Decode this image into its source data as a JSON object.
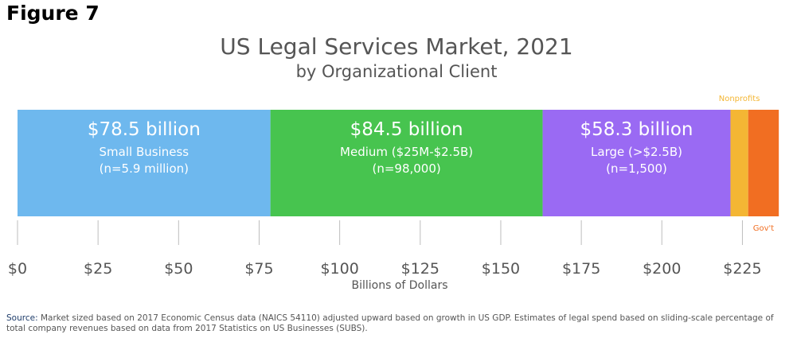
{
  "figure_label": "Figure 7",
  "source": {
    "label": "Source:",
    "text": "Market sized based on 2017 Economic Census data (NAICS 54110) adjusted upward based on growth in US GDP. Estimates of legal spend based on sliding-scale percentage of total company  revenues based on data from 2017 Statistics on US Businesses (SUBS)."
  },
  "chart_data": {
    "type": "bar",
    "stacked": true,
    "orientation": "horizontal",
    "title": "US Legal Services Market, 2021",
    "subtitle": "by Organizational Client",
    "xlabel": "Billions of Dollars",
    "xlim": [
      0,
      237
    ],
    "x_ticks": [
      0,
      25,
      50,
      75,
      100,
      125,
      150,
      175,
      200,
      225
    ],
    "x_tick_labels": [
      "$0",
      "$25",
      "$50",
      "$75",
      "$100",
      "$125",
      "$150",
      "$175",
      "$200",
      "$225"
    ],
    "grid": false,
    "series": [
      {
        "name": "Small Business",
        "value": 78.5,
        "color": "#6eb8ee",
        "labels": [
          "$78.5 billion",
          "Small Business",
          "(n=5.9 million)"
        ]
      },
      {
        "name": "Medium ($25M-$2.5B)",
        "value": 84.5,
        "color": "#47c44f",
        "labels": [
          "$84.5 billion",
          "Medium ($25M-$2.5B)",
          "(n=98,000)"
        ]
      },
      {
        "name": "Large (>$2.5B)",
        "value": 58.3,
        "color": "#9a6af3",
        "labels": [
          "$58.3 billion",
          "Large (>$2.5B)",
          "(n=1,500)"
        ]
      },
      {
        "name": "Nonprofits",
        "value": 5.5,
        "color": "#f4b634",
        "labels": [],
        "callout": "Nonprofits",
        "callout_position": "above"
      },
      {
        "name": "Gov't",
        "value": 9.5,
        "color": "#f16e22",
        "labels": [],
        "callout": "Gov't",
        "callout_position": "below"
      }
    ]
  }
}
